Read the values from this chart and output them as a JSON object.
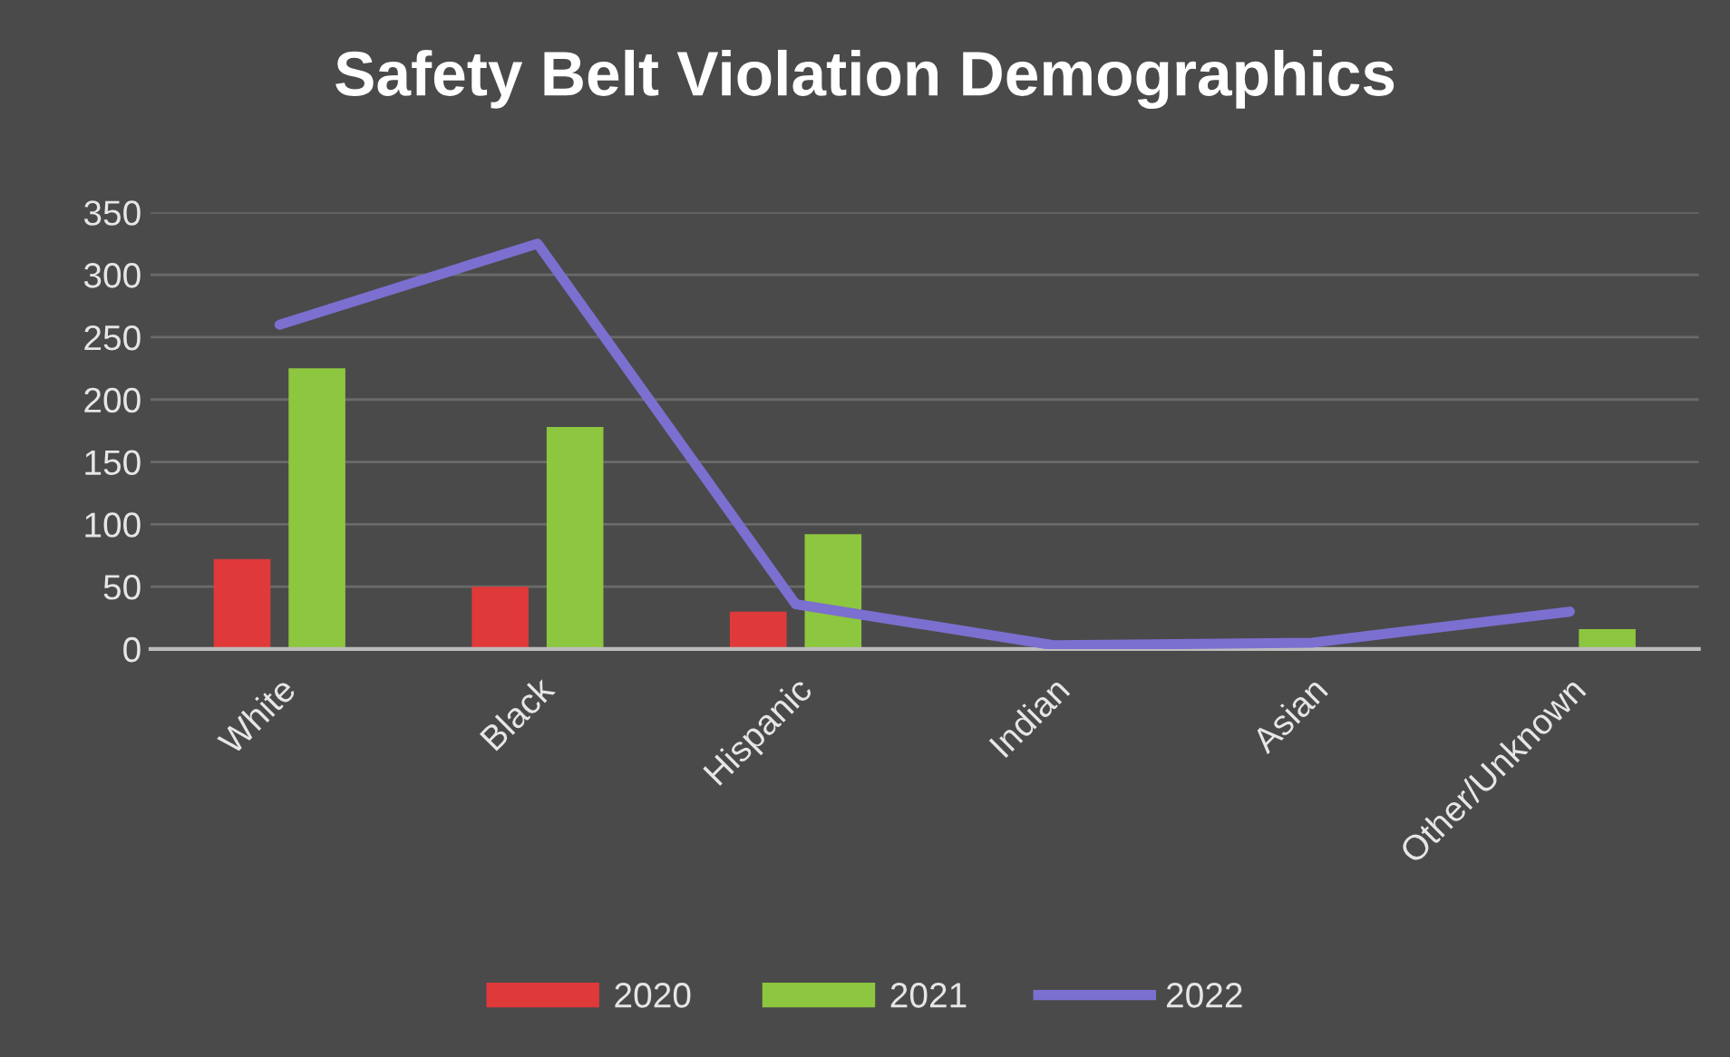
{
  "chart_data": {
    "type": "bar",
    "title": "Safety Belt Violation Demographics",
    "categories": [
      "White",
      "Black",
      "Hispanic",
      "Indian",
      "Asian",
      "Other/Unknown"
    ],
    "series": [
      {
        "name": "2020",
        "color": "#e0393a",
        "values": [
          72,
          50,
          30,
          null,
          null,
          null
        ]
      },
      {
        "name": "2021",
        "color": "#8dc63f",
        "values": [
          225,
          178,
          92,
          null,
          null,
          16
        ]
      },
      {
        "name": "2022",
        "type": "line",
        "color": "#7b6fd0",
        "values": [
          260,
          325,
          36,
          3,
          5,
          30
        ]
      }
    ],
    "ylim": [
      0,
      350
    ],
    "yticks": [
      0,
      50,
      100,
      150,
      200,
      250,
      300,
      350
    ],
    "grid": "y",
    "legend": "bottom",
    "marker": "none",
    "line_style": "solid"
  }
}
